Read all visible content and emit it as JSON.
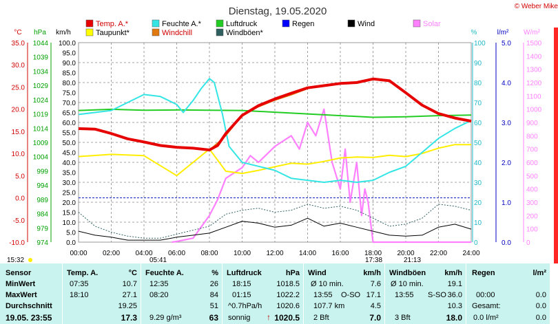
{
  "title": "Dienstag, 19.05.2020",
  "copyright": "© Weber Mike",
  "legend": [
    {
      "label": "Temp. A.*",
      "color": "#e60000"
    },
    {
      "label": "Taupunkt*",
      "color": "#ffff00"
    },
    {
      "label": "Feuchte A.*",
      "color": "#33e5e5"
    },
    {
      "label": "Windchill",
      "color": "#e07a10"
    },
    {
      "label": "Luftdruck",
      "color": "#22cc22"
    },
    {
      "label": "Windböen*",
      "color": "#2f5f5f"
    },
    {
      "label": "Regen",
      "color": "#0000ff"
    },
    {
      "label": "Wind",
      "color": "#000000"
    },
    {
      "label": "Solar",
      "color": "#ff80ff"
    }
  ],
  "axis_units": {
    "temp": "°C",
    "press": "hPa",
    "wind": "km/h",
    "hum": "%",
    "rain": "l/m²",
    "solar": "W/m²"
  },
  "axes": {
    "temp": [
      "35.0",
      "30.0",
      "25.0",
      "20.0",
      "15.0",
      "10.0",
      "5.0",
      "0.0",
      "-5.0",
      "-10.0"
    ],
    "press": [
      "1044",
      "1039",
      "1034",
      "1029",
      "1024",
      "1019",
      "1014",
      "1009",
      "1004",
      "999",
      "994",
      "989",
      "984",
      "979",
      "974"
    ],
    "wind": [
      "100.0",
      "95.0",
      "90.0",
      "85.0",
      "80.0",
      "75.0",
      "70.0",
      "65.0",
      "60.0",
      "55.0",
      "50.0",
      "45.0",
      "40.0",
      "35.0",
      "30.0",
      "25.0",
      "20.0",
      "15.0",
      "10.0",
      "5.0",
      "0.0"
    ],
    "hum": [
      "100",
      "90",
      "80",
      "70",
      "60",
      "50",
      "40",
      "30",
      "20",
      "10",
      "0"
    ],
    "rain": [
      "5.0",
      "4.0",
      "3.0",
      "2.0",
      "1.0",
      "0.0"
    ],
    "solar": [
      "1500",
      "1400",
      "1300",
      "1200",
      "1100",
      "1000",
      "900",
      "800",
      "700",
      "600",
      "500",
      "400",
      "300",
      "200",
      "100",
      "0"
    ]
  },
  "x_ticks": [
    "00:00",
    "02:00",
    "04:00",
    "06:00",
    "08:00",
    "10:00",
    "12:00",
    "14:00",
    "16:00",
    "18:00",
    "20:00",
    "22:00",
    "24:00"
  ],
  "sun": {
    "left": "15:32",
    "rise": "05:41",
    "noon": "17:38",
    "set": "21:13"
  },
  "chart_data": {
    "type": "line",
    "x_range": [
      0,
      24
    ],
    "temp_range": [
      -10,
      35
    ],
    "series": [
      {
        "name": "Temp. A.*",
        "axis": "temp",
        "x": [
          0,
          1,
          2,
          3,
          4,
          5,
          6,
          7,
          8,
          8.5,
          9,
          10,
          11,
          12,
          13,
          14,
          15,
          16,
          17,
          18,
          19,
          20,
          21,
          22,
          23,
          24
        ],
        "values": [
          15.6,
          15.5,
          14.5,
          13.3,
          12.6,
          11.8,
          11.4,
          11.2,
          10.8,
          11.8,
          14.5,
          18.6,
          20.8,
          22.3,
          23.6,
          24.8,
          25.3,
          25.8,
          26.0,
          26.8,
          26.4,
          23.7,
          20.9,
          19.0,
          18.0,
          17.3
        ]
      },
      {
        "name": "Feuchte A.*",
        "axis": "hum",
        "x": [
          0,
          1,
          2,
          3,
          4,
          5,
          6,
          6.4,
          7,
          7.5,
          8,
          8.3,
          8.8,
          9.2,
          10,
          11,
          12,
          13,
          14,
          15,
          16,
          17,
          18,
          19,
          20,
          21,
          22,
          23,
          24
        ],
        "values": [
          64,
          65,
          66,
          70,
          74,
          73,
          69,
          65,
          71,
          77,
          82,
          80,
          64,
          48,
          40,
          38,
          36,
          32,
          31,
          30,
          31,
          30,
          31,
          35,
          38,
          45,
          52,
          57,
          61
        ]
      },
      {
        "name": "Luftdruck",
        "axis": "press",
        "x": [
          0,
          2,
          4,
          6,
          8,
          10,
          12,
          14,
          16,
          18,
          20,
          22,
          24
        ],
        "values": [
          1020.2,
          1020.6,
          1020.3,
          1020.4,
          1020.3,
          1020.2,
          1019.6,
          1019.0,
          1018.4,
          1017.8,
          1018.0,
          1018.4,
          1018.6
        ]
      },
      {
        "name": "Taupunkt*",
        "axis": "temp",
        "x": [
          0,
          2,
          4,
          6,
          7,
          8,
          9,
          10,
          11,
          12,
          13,
          14,
          15,
          16,
          17,
          18,
          19,
          20,
          21,
          22,
          23,
          24
        ],
        "values": [
          9.3,
          9.8,
          9.5,
          5.0,
          8.0,
          11.0,
          6.0,
          5.5,
          6.2,
          7.0,
          7.8,
          7.6,
          8.2,
          9.0,
          9.2,
          9.1,
          9.6,
          9.3,
          10.0,
          11.2,
          12.0,
          12.0
        ]
      },
      {
        "name": "Solar",
        "axis": "solar",
        "x": [
          5.7,
          6,
          7,
          8,
          8.5,
          9,
          10,
          10.5,
          11,
          12,
          13,
          13.5,
          14,
          14.5,
          15,
          15.5,
          16,
          16.3,
          16.6,
          17,
          17.3,
          17.5,
          17.7,
          18,
          19,
          20,
          21,
          22,
          23,
          24
        ],
        "values": [
          0,
          5,
          30,
          200,
          320,
          480,
          560,
          650,
          600,
          720,
          800,
          700,
          900,
          800,
          1000,
          600,
          400,
          700,
          300,
          600,
          200,
          400,
          300,
          0,
          0,
          0,
          0,
          0,
          0,
          0
        ]
      },
      {
        "name": "Wind",
        "axis": "wind",
        "x": [
          0,
          1,
          2,
          3,
          4,
          5,
          6,
          7,
          8,
          9,
          10,
          11,
          12,
          13,
          14,
          15,
          16,
          17,
          18,
          19,
          20,
          21,
          22,
          23,
          24
        ],
        "values": [
          5.5,
          3.5,
          2.5,
          1.0,
          1.0,
          1.0,
          2.5,
          3.5,
          4.5,
          7.5,
          10.5,
          9.5,
          7.5,
          8.5,
          12.0,
          8.0,
          9.5,
          7.5,
          5.5,
          3.5,
          3.0,
          3.5,
          7.5,
          9.0,
          6.5
        ]
      },
      {
        "name": "Windböen*",
        "axis": "wind",
        "x": [
          0,
          1,
          2,
          3,
          4,
          5,
          6,
          7,
          8,
          9,
          10,
          11,
          12,
          13,
          14,
          15,
          16,
          17,
          18,
          19,
          20,
          21,
          22,
          23,
          24
        ],
        "values": [
          15.0,
          8.0,
          5.0,
          3.0,
          2.0,
          2.0,
          4.0,
          6.0,
          8.0,
          14.0,
          16.0,
          17.0,
          15.0,
          16.0,
          19.0,
          17.0,
          18.0,
          16.0,
          12.0,
          8.0,
          9.0,
          12.0,
          19.0,
          18.0,
          16.0
        ]
      },
      {
        "name": "Windchill",
        "axis": "temp",
        "x": [
          8,
          9,
          10,
          11,
          12,
          13,
          14
        ],
        "values": [
          10.8,
          14.0,
          18.5,
          20.5,
          22.0,
          23.2,
          24.6
        ]
      }
    ],
    "zero_line": "0.0"
  },
  "table": {
    "rows": [
      "Sensor",
      "MinWert",
      "MaxWert",
      "Durchschnitt",
      "19.05.  23:55"
    ],
    "temp": {
      "h1": "Temp. A.",
      "h2": "°C",
      "min_t": "07:35",
      "min_v": "10.7",
      "max_t": "18:10",
      "max_v": "27.1",
      "avg": "19.25",
      "cur": "17.3"
    },
    "hum": {
      "h1": "Feuchte A.",
      "h2": "%",
      "min_t": "12:35",
      "min_v": "26",
      "max_t": "08:20",
      "max_v": "84",
      "avg": "51",
      "cur_l": "9.29 g/m³",
      "cur": "63"
    },
    "press": {
      "h1": "Luftdruck",
      "h2": "hPa",
      "min_t": "18:15",
      "min_v": "1018.5",
      "max_t": "01:15",
      "max_v": "1022.2",
      "avg_l": "^0.7hPa/h",
      "avg": "1020.6",
      "cur_l": "sonnig",
      "cur_arrow": "↑",
      "cur": "1020.5"
    },
    "wind": {
      "h1": "Wind",
      "h2": "km/h",
      "min_t": "Ø 10 min.",
      "min_v": "7.6",
      "max_t": "13:55",
      "max_m": "O-SO",
      "max_v": "17.1",
      "avg_l": "107.7 km",
      "avg": "4.5",
      "cur_l": "2 Bft",
      "cur": "7.0"
    },
    "gust": {
      "h1": "Windböen",
      "h2": "km/h",
      "min_t": "Ø 10 min.",
      "min_v": "19.1",
      "max_t": "13:55",
      "max_m": "S-SO",
      "max_v": "36.0",
      "avg": "10.3",
      "cur_l": "3 Bft",
      "cur": "18.0"
    },
    "rain": {
      "h1": "Regen",
      "h2": "l/m²",
      "max_t": "00:00",
      "max_v": "0.0",
      "avg_l": "Gesamt:",
      "avg": "0.0",
      "cur_l": "0.0 l/m²",
      "cur": "0.0"
    }
  }
}
